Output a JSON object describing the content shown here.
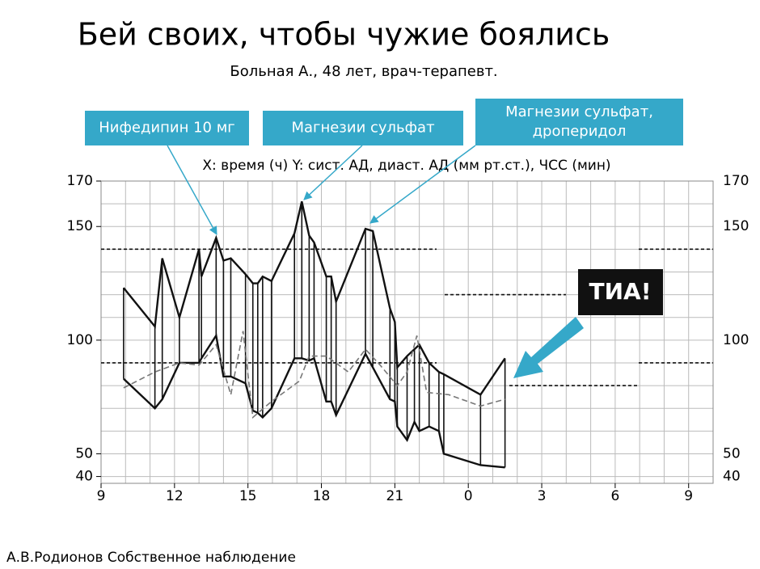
{
  "chart_data": {
    "type": "line",
    "title": "Бей своих, чтобы чужие боялись",
    "subtitle": "Больная А., 48 лет, врач-терапевт.",
    "axis_caption": "X: время (ч) Y: сист. АД, диаст. АД (мм рт.ст.), ЧСС (мин)",
    "annotations": [
      [
        "Нифедипин 10 мг"
      ],
      [
        "Магнезии сульфат"
      ],
      [
        "Магнезии сульфат,",
        "дроперидол"
      ],
      [
        "ТИА!"
      ]
    ],
    "series": [
      {
        "color": "#111111",
        "x": [
          9.92,
          11.2,
          11.5,
          12.2,
          13.0,
          13.1,
          13.7,
          14.0,
          14.3,
          14.9,
          15.2,
          15.4,
          15.6,
          15.96,
          16.9,
          17.2,
          17.5,
          17.7,
          18.2,
          18.4,
          18.6,
          19.8,
          20.1,
          20.8,
          21.0,
          21.1,
          21.5,
          21.8,
          22.0,
          22.4,
          22.8,
          23.0,
          24.5,
          25.5
        ],
        "values": [
          123,
          106,
          136,
          110,
          140,
          128,
          145,
          135,
          136,
          129,
          125,
          125,
          128,
          126,
          147,
          161,
          146,
          143,
          128,
          128,
          117,
          149,
          148,
          114,
          108,
          88,
          93,
          96,
          98,
          90,
          86,
          85,
          76,
          92
        ]
      },
      {
        "color": "#111111",
        "x": [
          9.92,
          11.2,
          11.5,
          12.2,
          13.0,
          13.1,
          13.7,
          14.0,
          14.3,
          14.9,
          15.2,
          15.4,
          15.6,
          15.96,
          16.9,
          17.2,
          17.5,
          17.7,
          18.2,
          18.4,
          18.6,
          19.8,
          20.1,
          20.8,
          21.0,
          21.1,
          21.5,
          21.8,
          22.0,
          22.4,
          22.8,
          23.0,
          24.5,
          25.5
        ],
        "values": [
          83,
          70,
          74,
          90,
          90,
          92,
          102,
          84,
          84,
          81,
          69,
          68,
          66,
          70,
          92,
          92,
          91,
          92,
          73,
          73,
          67,
          94,
          88,
          74,
          73,
          62,
          56,
          64,
          60,
          62,
          60,
          50,
          45,
          44
        ]
      },
      {
        "color": "#777777",
        "dashed": true,
        "x": [
          9.92,
          11.2,
          12.2,
          13.0,
          13.7,
          14.3,
          14.8,
          15.2,
          15.96,
          17.1,
          17.5,
          18.2,
          19.1,
          19.8,
          20.4,
          21.1,
          21.5,
          21.9,
          22.3,
          23.2,
          24.5,
          25.5
        ],
        "values": [
          79,
          86,
          90,
          89,
          98,
          76,
          104,
          66,
          73,
          82,
          93,
          93,
          86,
          96,
          89,
          80,
          86,
          102,
          77,
          76,
          71,
          74
        ]
      }
    ],
    "xlim": [
      9,
      34
    ],
    "ylim": [
      37,
      170
    ],
    "xticks": [
      9,
      12,
      15,
      18,
      21,
      {
        "value": 24,
        "label": "0"
      },
      {
        "value": 27,
        "label": "3"
      },
      {
        "value": 30,
        "label": "6"
      },
      {
        "value": 33,
        "label": "9"
      }
    ],
    "yticks": [
      40,
      50,
      100,
      150,
      170
    ],
    "xgrid": [
      9,
      10,
      11,
      12,
      13,
      14,
      15,
      16,
      17,
      18,
      19,
      20,
      21,
      22,
      23,
      24,
      25,
      26,
      27,
      28,
      29,
      30,
      31,
      32,
      33,
      34
    ],
    "ygrid": [
      40,
      50,
      60,
      70,
      80,
      90,
      100,
      110,
      120,
      130,
      140,
      150,
      160,
      170
    ],
    "reference_lines": [
      140,
      120,
      90,
      80
    ],
    "callout_color": "#35a8c9"
  },
  "footer": "А.В.Родионов Собственное наблюдение"
}
